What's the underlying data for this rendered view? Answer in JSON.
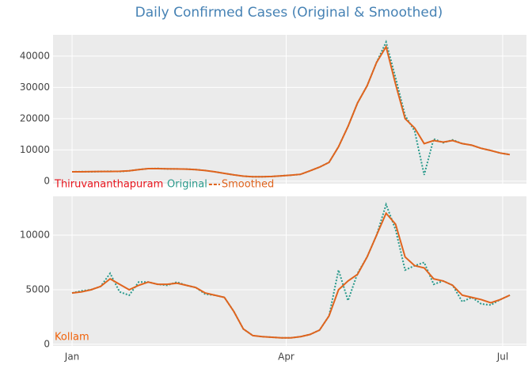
{
  "chart_data": [
    {
      "type": "line",
      "title": "Daily Confirmed Cases (Original & Smoothed)",
      "label": "Thiruvananthapuram",
      "label_color": "#e8141c",
      "x": [
        0,
        4,
        8,
        12,
        16,
        20,
        24,
        28,
        32,
        36,
        40,
        44,
        48,
        52,
        56,
        60,
        64,
        68,
        72,
        76,
        80,
        84,
        88,
        92,
        96,
        100,
        104,
        108,
        112,
        116,
        120,
        124,
        128,
        132,
        136,
        140,
        144,
        148,
        152,
        156,
        160,
        164,
        168,
        172,
        176,
        180,
        184
      ],
      "xlim": [
        -8,
        191
      ],
      "xticks": [
        0,
        90,
        181
      ],
      "ylim": [
        -800,
        46800
      ],
      "yticks": [
        0,
        10000,
        20000,
        30000,
        40000
      ],
      "grid": true,
      "series": [
        {
          "name": "Original",
          "color": "#2a9a8c",
          "dash": true,
          "values": [
            3000,
            3050,
            3000,
            3100,
            3150,
            3100,
            3300,
            3700,
            4000,
            4050,
            3900,
            3900,
            3850,
            3700,
            3400,
            3000,
            2500,
            2000,
            1600,
            1400,
            1400,
            1500,
            1700,
            1900,
            2200,
            3300,
            4500,
            6000,
            11000,
            17500,
            25000,
            30500,
            38000,
            44500,
            33000,
            21000,
            16000,
            2000,
            13500,
            12300,
            13200,
            12000,
            11500,
            10500,
            9800,
            9000,
            8500
          ]
        },
        {
          "name": "Smoothed",
          "color": "#e0641e",
          "dash": false,
          "values": [
            3000,
            3000,
            3050,
            3100,
            3100,
            3150,
            3300,
            3700,
            4000,
            4000,
            3950,
            3900,
            3850,
            3700,
            3400,
            3000,
            2500,
            2000,
            1600,
            1400,
            1400,
            1500,
            1700,
            1900,
            2200,
            3300,
            4500,
            6000,
            11000,
            17500,
            25000,
            30500,
            38000,
            43000,
            31000,
            20000,
            17000,
            12000,
            13000,
            12500,
            13000,
            12000,
            11500,
            10500,
            9800,
            9000,
            8500
          ]
        }
      ]
    },
    {
      "type": "line",
      "label": "Kollam",
      "label_color": "#f0620a",
      "x": [
        0,
        4,
        8,
        12,
        16,
        20,
        24,
        28,
        32,
        36,
        40,
        44,
        48,
        52,
        56,
        60,
        64,
        68,
        72,
        76,
        80,
        84,
        88,
        92,
        96,
        100,
        104,
        108,
        112,
        116,
        120,
        124,
        128,
        132,
        136,
        140,
        144,
        148,
        152,
        156,
        160,
        164,
        168,
        172,
        176,
        180,
        184
      ],
      "xlim": [
        -8,
        191
      ],
      "xticks": [
        {
          "value": 0,
          "label": "Jan"
        },
        {
          "value": 90,
          "label": "Apr"
        },
        {
          "value": 181,
          "label": "Jul"
        }
      ],
      "ylim": [
        -150,
        13550
      ],
      "yticks": [
        0,
        5000,
        10000
      ],
      "grid": true,
      "series": [
        {
          "color": "#2a9a8c",
          "dash": true,
          "values": [
            4700,
            4900,
            5000,
            5300,
            6500,
            4800,
            4500,
            5700,
            5700,
            5500,
            5400,
            5700,
            5400,
            5200,
            4600,
            4500,
            4300,
            3000,
            1400,
            800,
            700,
            650,
            600,
            600,
            700,
            900,
            1300,
            2600,
            6800,
            4000,
            6500,
            8000,
            10000,
            12800,
            10500,
            6800,
            7200,
            7500,
            5500,
            5800,
            5400,
            3900,
            4300,
            3700,
            3600,
            4100,
            4500
          ]
        },
        {
          "color": "#e0641e",
          "dash": false,
          "values": [
            4700,
            4800,
            5000,
            5300,
            6000,
            5500,
            5000,
            5400,
            5700,
            5500,
            5500,
            5600,
            5400,
            5200,
            4700,
            4500,
            4300,
            3000,
            1400,
            800,
            700,
            650,
            600,
            600,
            700,
            900,
            1300,
            2600,
            5000,
            5800,
            6400,
            8000,
            10000,
            12000,
            11000,
            8000,
            7200,
            7000,
            6000,
            5800,
            5400,
            4500,
            4300,
            4100,
            3800,
            4100,
            4500
          ]
        }
      ]
    }
  ]
}
